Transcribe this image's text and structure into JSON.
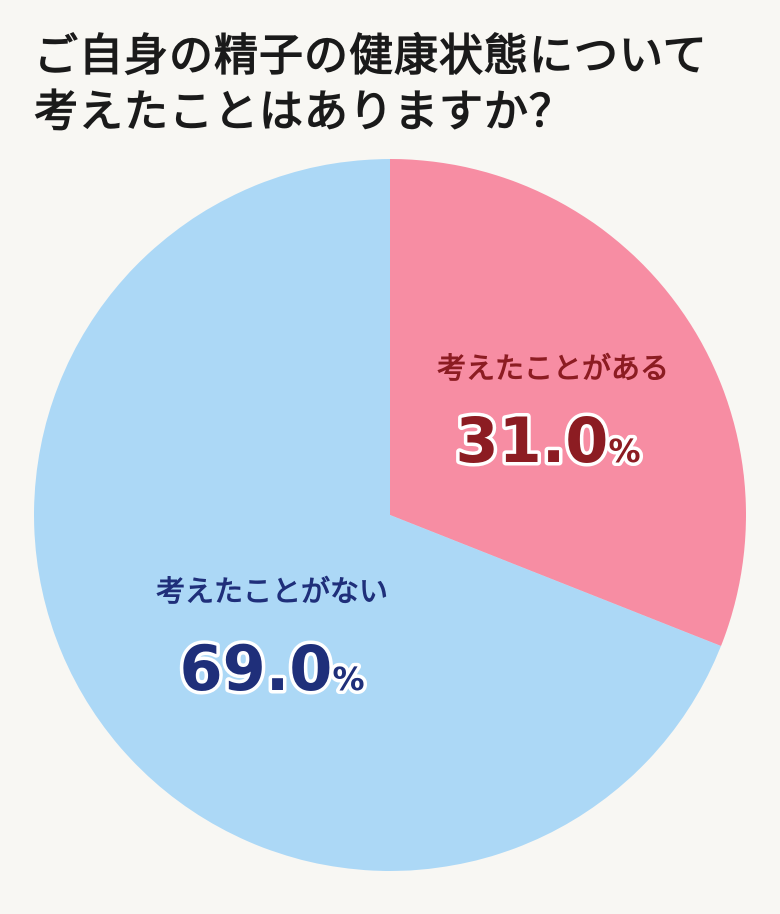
{
  "title": {
    "line1": "ご自身の精子の健康状態について",
    "line2": "考えたことはありますか？"
  },
  "chart_data": {
    "type": "pie",
    "title": "ご自身の精子の健康状態について考えたことはありますか？",
    "slices": [
      {
        "label": "考えたことがある",
        "value": 31.0,
        "display": "31.0",
        "unit": "%",
        "color": "#f78da3",
        "text_color": "#8c1c22"
      },
      {
        "label": "考えたことがない",
        "value": 69.0,
        "display": "69.0",
        "unit": "%",
        "color": "#acd8f6",
        "text_color": "#1f2f7a"
      }
    ]
  }
}
